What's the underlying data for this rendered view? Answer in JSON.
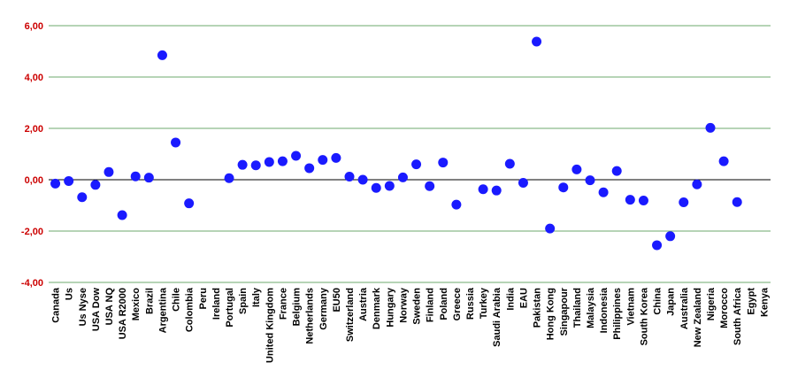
{
  "chart_data": {
    "type": "scatter",
    "title": "",
    "xlabel": "",
    "ylabel": "",
    "ylim": [
      -4,
      6
    ],
    "y_ticks": [
      -4,
      -2,
      0,
      2,
      4,
      6
    ],
    "y_tick_labels": [
      "-4,00",
      "-2,00",
      "0,00",
      "2,00",
      "4,00",
      "6,00"
    ],
    "grid": true,
    "legend": "none",
    "categories": [
      "Canada",
      "Us",
      "Us Nyse",
      "USA Dow",
      "USA NQ",
      "USA R2000",
      "Mexico",
      "Brazil",
      "Argentina",
      "Chile",
      "Colombia",
      "Peru",
      "Ireland",
      "Portugal",
      "Spain",
      "Italy",
      "United Kingdom",
      "France",
      "Belgium",
      "Netherlands",
      "Germany",
      "EU50",
      "Switzerland",
      "Austria",
      "Denmark",
      "Hungary",
      "Norway",
      "Sweden",
      "Finland",
      "Poland",
      "Greece",
      "Russia",
      "Turkey",
      "Saudi Arabia",
      "India",
      "EAU",
      "Pakistan",
      "Hong Kong",
      "Singapour",
      "Thailand",
      "Malaysia",
      "Indonesia",
      "Philippines",
      "Vietnam",
      "South Korea",
      "China",
      "Japan",
      "Australia",
      "New Zealand",
      "Nigeria",
      "Morocco",
      "South Africa",
      "Egypt",
      "Kenya"
    ],
    "values": [
      -0.15,
      -0.05,
      -0.68,
      -0.2,
      0.3,
      -1.38,
      0.13,
      0.08,
      4.85,
      1.45,
      -0.92,
      null,
      null,
      0.06,
      0.58,
      0.56,
      0.69,
      0.72,
      0.93,
      0.45,
      0.77,
      0.85,
      0.12,
      0.0,
      -0.32,
      -0.24,
      0.09,
      0.6,
      -0.25,
      0.67,
      -0.97,
      null,
      -0.37,
      -0.42,
      0.62,
      -0.12,
      5.38,
      -1.9,
      -0.3,
      0.4,
      -0.02,
      -0.49,
      0.34,
      -0.78,
      -0.81,
      -2.55,
      -2.2,
      -0.88,
      -0.18,
      2.02,
      0.72,
      -0.87,
      null,
      null
    ],
    "colors": {
      "marker": "#1a1aff",
      "grid": "#3c8c3c",
      "zero_line": "#000000",
      "y_tick_label": "#cc0000"
    }
  }
}
